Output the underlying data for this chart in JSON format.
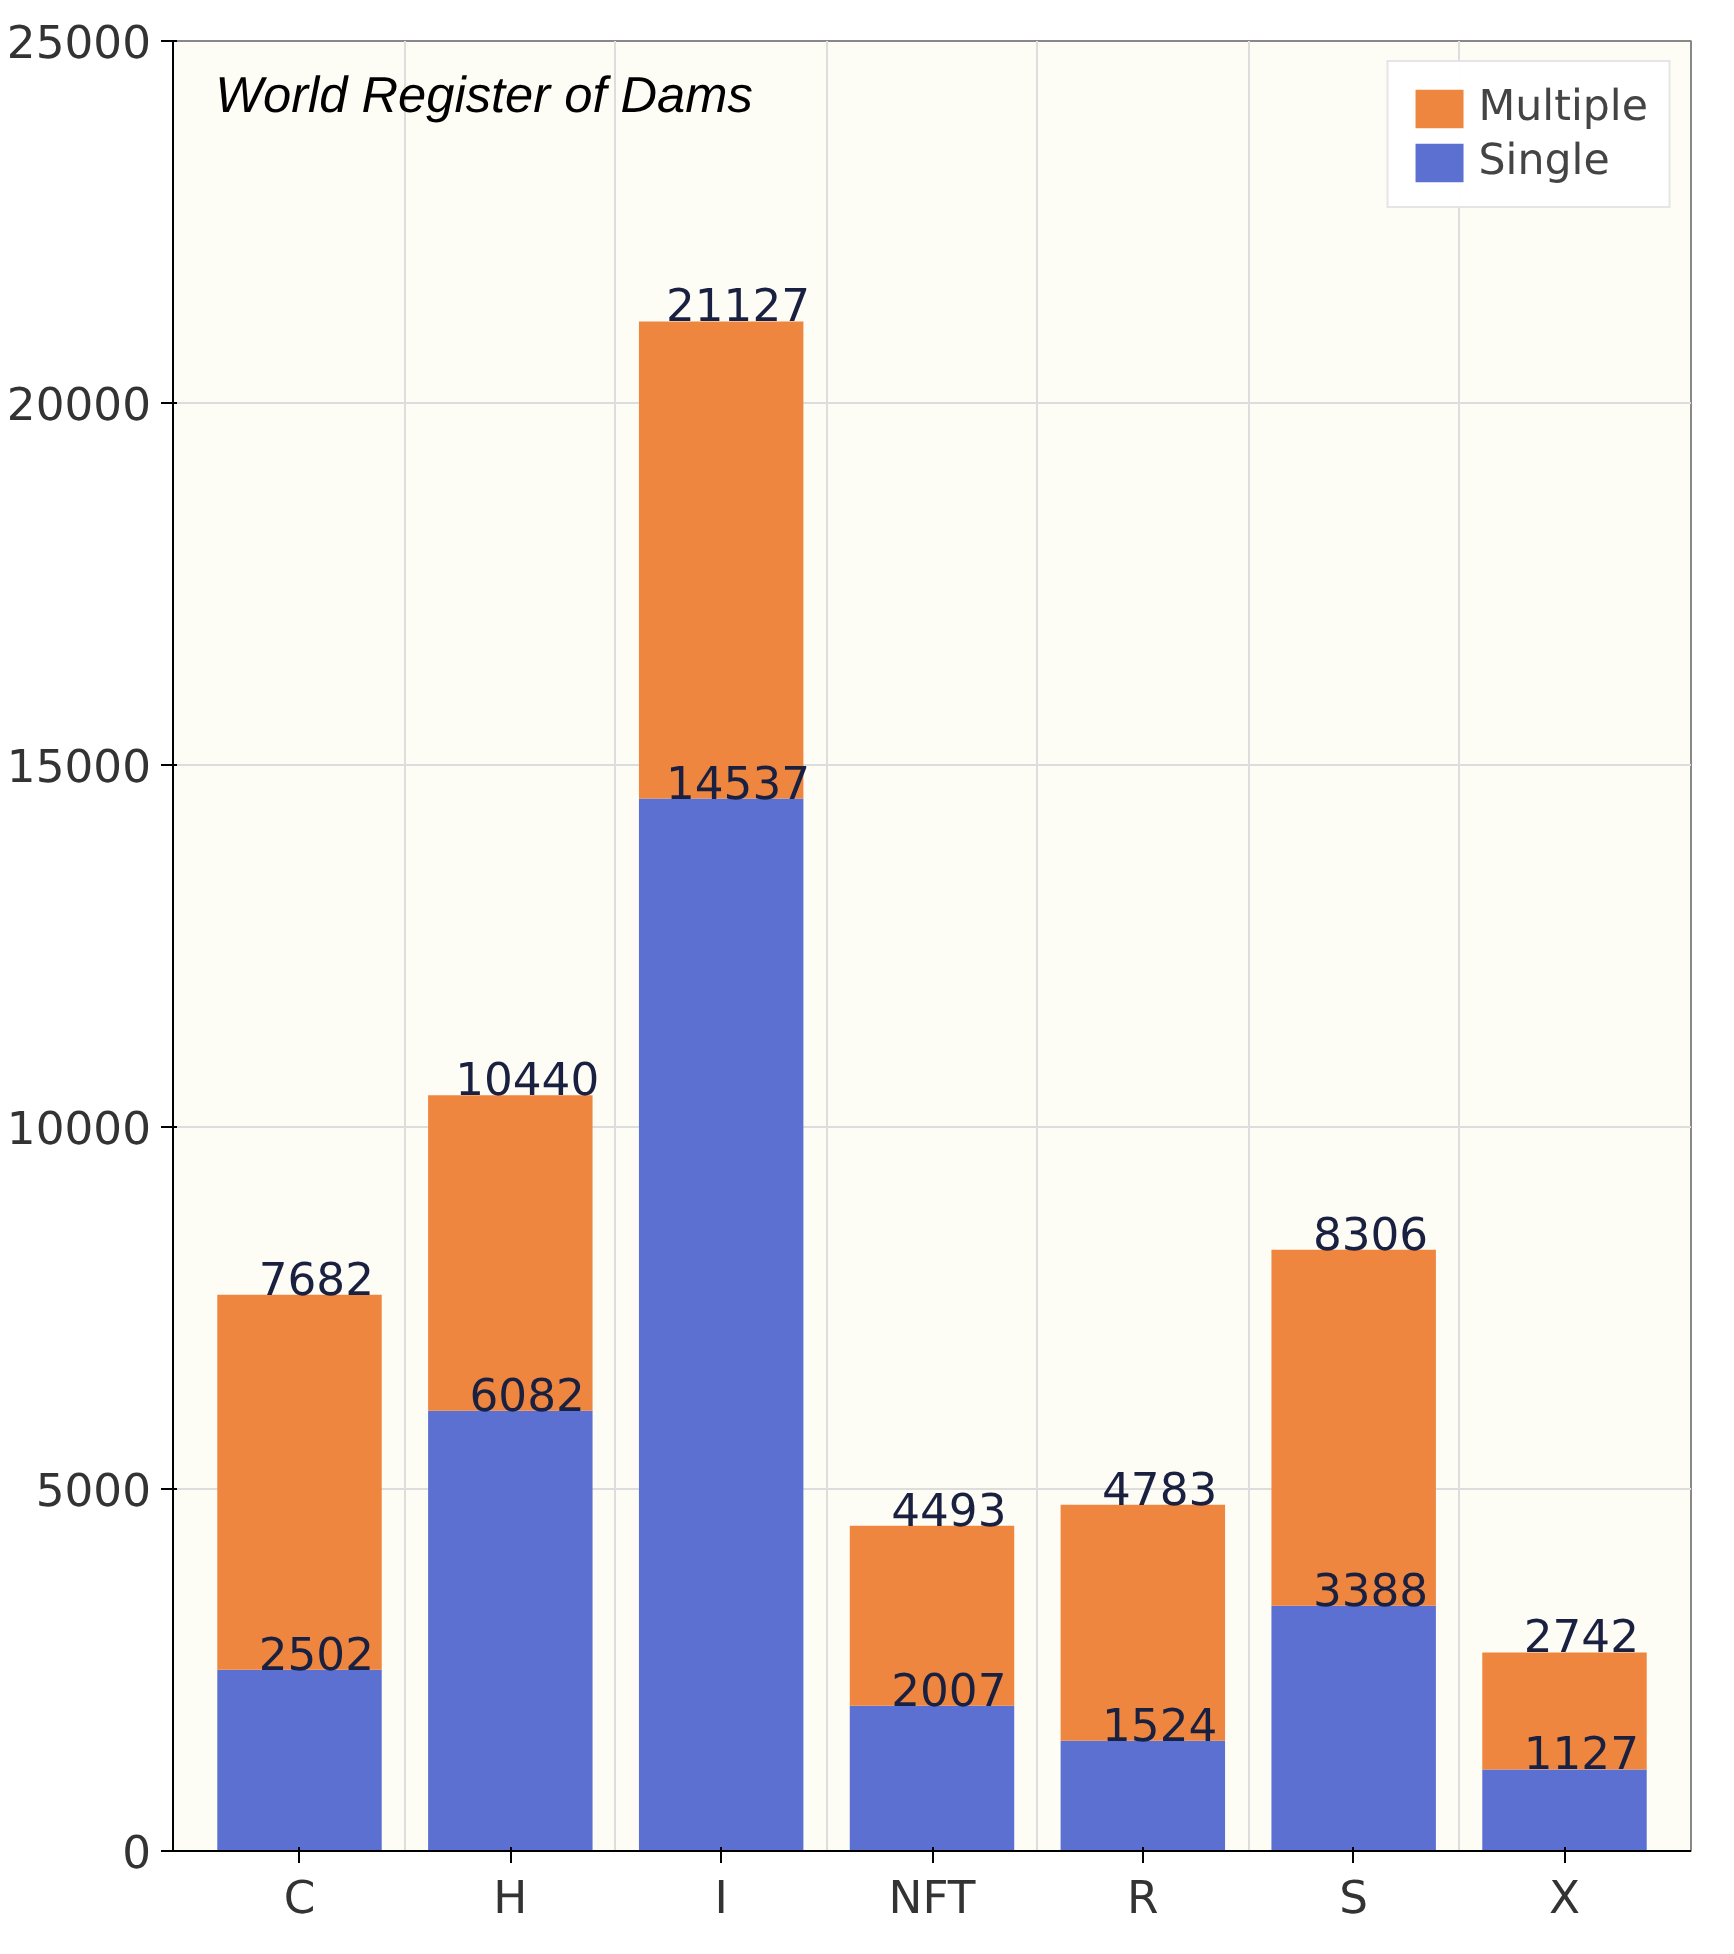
{
  "chart_data": {
    "type": "bar",
    "title": "World Register of Dams",
    "stacked": true,
    "categories": [
      "C",
      "H",
      "I",
      "NFT",
      "R",
      "S",
      "X"
    ],
    "series": [
      {
        "name": "Single",
        "color": "#5b70d0",
        "values": [
          2502,
          6082,
          14537,
          2007,
          1524,
          3388,
          1127
        ],
        "value_labels": [
          "2502",
          "6082",
          "14537",
          "2007",
          "1524",
          "3388",
          "1127"
        ]
      },
      {
        "name": "Multiple",
        "color": "#ee8640",
        "values": [
          5180,
          4358,
          6590,
          2486,
          3259,
          4918,
          1615
        ]
      }
    ],
    "totals": [
      "7682",
      "10440",
      "21127",
      "4493",
      "4783",
      "8306",
      "2742"
    ],
    "ylim": [
      0,
      25000
    ],
    "yticks": [
      0,
      5000,
      10000,
      15000,
      20000,
      25000
    ],
    "grid": true,
    "legend": "top right"
  }
}
